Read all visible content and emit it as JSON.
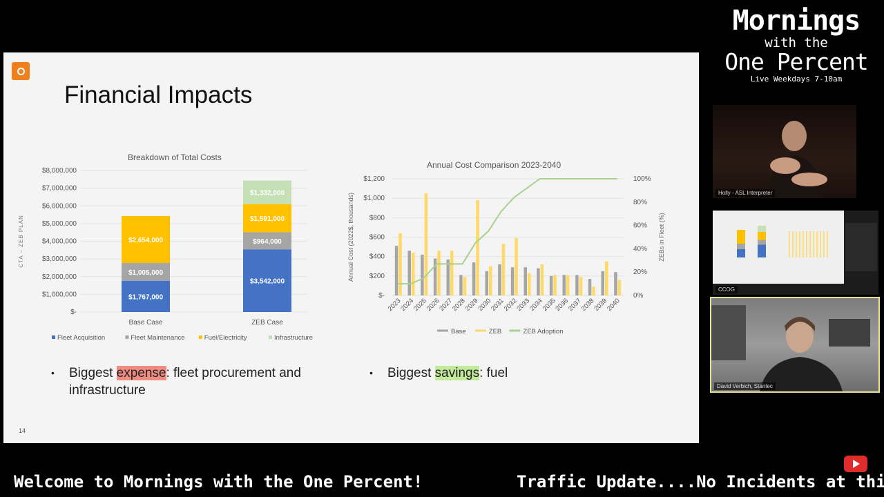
{
  "slide": {
    "title": "Financial Impacts",
    "page_number": "14",
    "bullets": [
      {
        "prefix": "Biggest ",
        "highlight": "expense",
        "rest": ": fleet procurement and",
        "rest2": "infrastructure"
      },
      {
        "prefix": "Biggest ",
        "highlight": "savings",
        "rest": ": fuel"
      }
    ],
    "colors": {
      "accent": "#f0801e",
      "blue": "#4472c4",
      "gray": "#a5a5a5",
      "yellow": "#ffc000",
      "green": "#a9d18e"
    }
  },
  "chart_data": [
    {
      "type": "bar",
      "stacked": true,
      "title": "Breakdown of Total Costs",
      "ylabel": "CTA – ZEB PLAN",
      "categories": [
        "Base Case",
        "ZEB Case"
      ],
      "ylim": [
        0,
        8000000
      ],
      "yticks": [
        "$-",
        "$1,000,000",
        "$2,000,000",
        "$3,000,000",
        "$4,000,000",
        "$5,000,000",
        "$6,000,000",
        "$7,000,000",
        "$8,000,000"
      ],
      "series": [
        {
          "name": "Fleet Acquisition",
          "color": "#4472c4",
          "values": [
            1767000,
            3542000
          ],
          "labels": [
            "$1,767,000",
            "$3,542,000"
          ]
        },
        {
          "name": "Fleet Maintenance",
          "color": "#a5a5a5",
          "values": [
            1005000,
            964000
          ],
          "labels": [
            "$1,005,000",
            "$964,000"
          ]
        },
        {
          "name": "Fuel/Electricity",
          "color": "#ffc000",
          "values": [
            2654000,
            1591000
          ],
          "labels": [
            "$2,654,000",
            "$1,591,000"
          ]
        },
        {
          "name": "Infrastructure",
          "color": "#c5e0b4",
          "values": [
            0,
            1332000
          ],
          "labels": [
            "",
            "$1,332,000"
          ]
        }
      ],
      "legend": "bottom"
    },
    {
      "type": "bar",
      "title": "Annual Cost Comparison 2023-2040",
      "ylabel": "Annual Cost (2022$, thousands)",
      "y2label": "ZEBs in Fleet (%)",
      "categories": [
        "2023",
        "2024",
        "2025",
        "2026",
        "2027",
        "2028",
        "2029",
        "2030",
        "2031",
        "2032",
        "2033",
        "2034",
        "2035",
        "2036",
        "2037",
        "2038",
        "2039",
        "2040"
      ],
      "ylim": [
        0,
        1200
      ],
      "yticks": [
        "$-",
        "$200",
        "$400",
        "$600",
        "$800",
        "$1,000",
        "$1,200"
      ],
      "y2lim": [
        0,
        100
      ],
      "y2ticks": [
        "0%",
        "20%",
        "40%",
        "60%",
        "80%",
        "100%"
      ],
      "series": [
        {
          "name": "Base",
          "kind": "bar",
          "color": "#a5a5a5",
          "values": [
            510,
            460,
            420,
            380,
            370,
            210,
            340,
            250,
            320,
            290,
            290,
            280,
            200,
            210,
            210,
            170,
            250,
            240
          ]
        },
        {
          "name": "ZEB",
          "kind": "bar",
          "color": "#ffd966",
          "values": [
            640,
            440,
            1050,
            460,
            460,
            190,
            980,
            300,
            530,
            590,
            230,
            320,
            210,
            210,
            190,
            90,
            350,
            160
          ]
        },
        {
          "name": "ZEB Adoption",
          "kind": "line",
          "axis": "y2",
          "color": "#a9d18e",
          "values": [
            10,
            10,
            15,
            27,
            27,
            27,
            45,
            55,
            72,
            84,
            92,
            100,
            100,
            100,
            100,
            100,
            100,
            100
          ]
        }
      ],
      "legend": "bottom"
    }
  ],
  "brand": {
    "line1": "Mornings",
    "line2": "with the",
    "line3": "One Percent",
    "line4": "Live Weekdays 7-10am"
  },
  "participants": [
    {
      "label": "Holly - ASL Interpreter"
    },
    {
      "label": "CCOG"
    },
    {
      "label": "David Verbich, Stantec"
    }
  ],
  "ticker": {
    "message1": "Welcome to Mornings with the One Percent!",
    "message2": "Traffic Update....No Incidents at thi"
  },
  "icons": {
    "youtube": "youtube-play-icon",
    "logo": "transit-logo-icon"
  }
}
